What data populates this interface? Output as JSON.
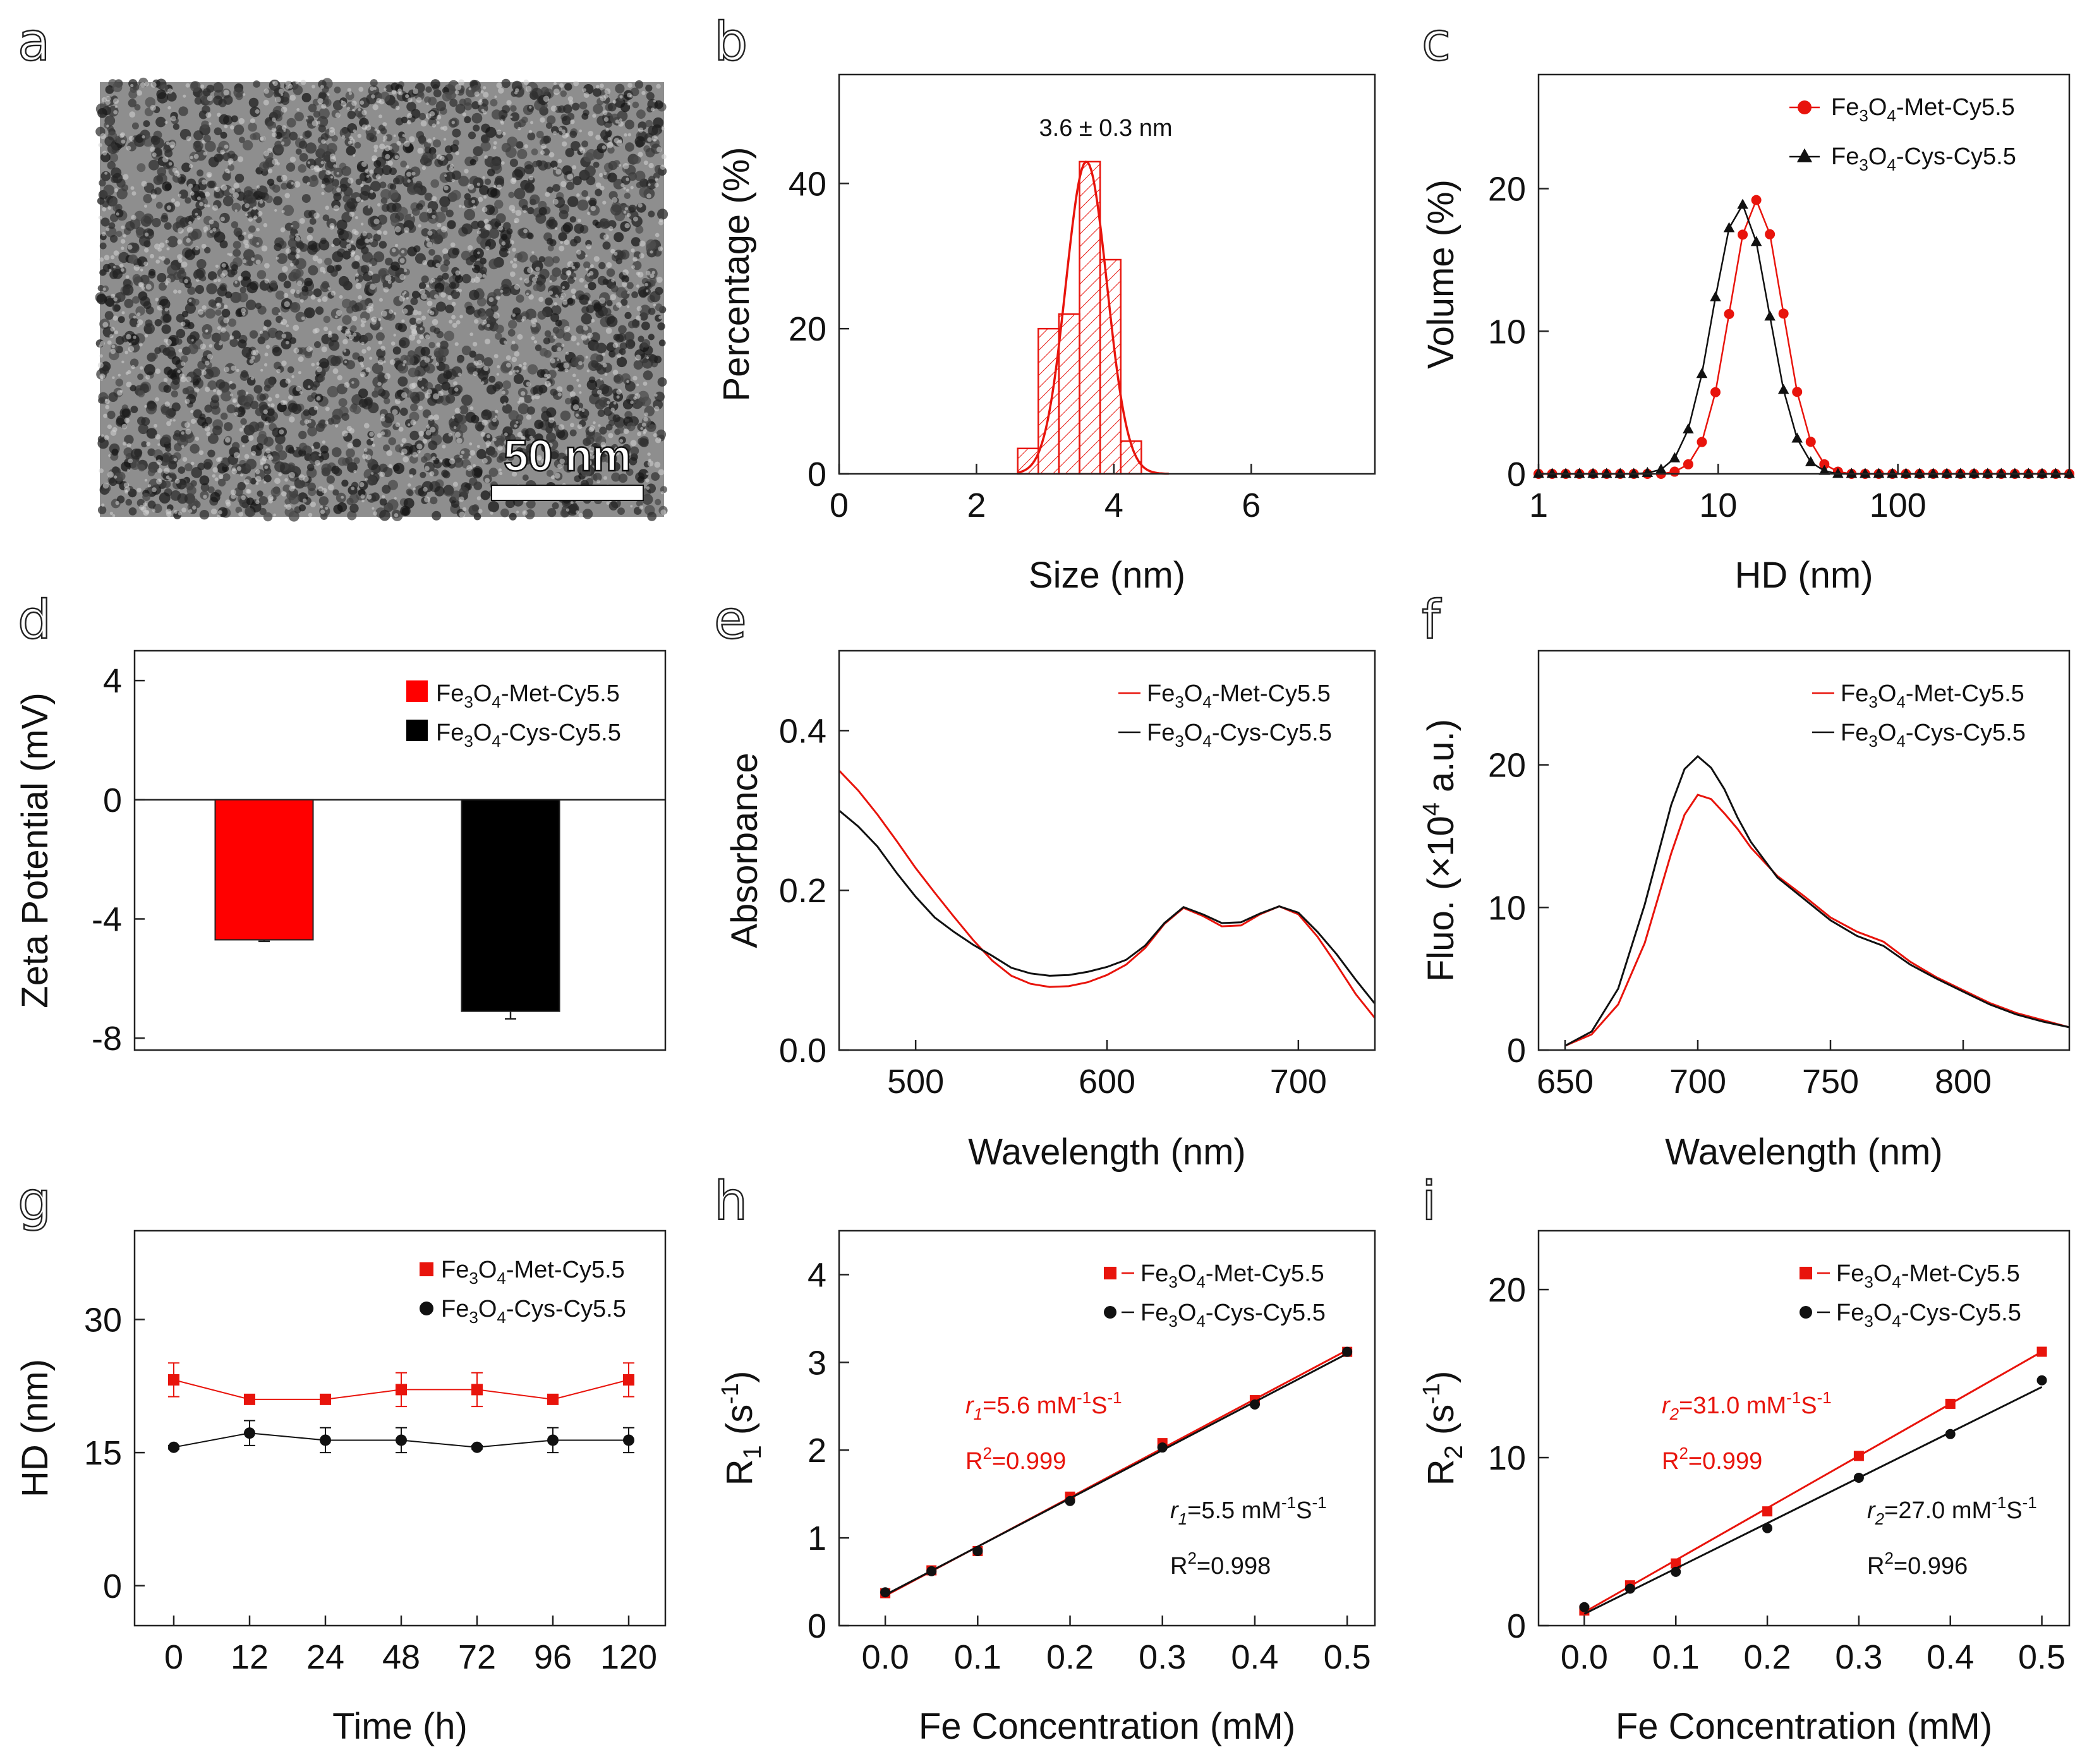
{
  "chart_data": [
    {
      "panel": "a",
      "type": "image",
      "description_label": "TEM micrograph",
      "scale_bar_label": "50 nm"
    },
    {
      "panel": "b",
      "type": "bar",
      "xlabel": "Size (nm)",
      "ylabel": "Percentage (%)",
      "xlim": [
        0,
        7.8
      ],
      "ylim": [
        0,
        55
      ],
      "xticks": [
        0,
        2,
        4,
        6
      ],
      "yticks": [
        0,
        20,
        40
      ],
      "bin_width": 0.3,
      "bins": [
        {
          "center": 2.75,
          "value": 3.5
        },
        {
          "center": 3.05,
          "value": 20
        },
        {
          "center": 3.35,
          "value": 22
        },
        {
          "center": 3.65,
          "value": 43
        },
        {
          "center": 3.95,
          "value": 29.5
        },
        {
          "center": 4.25,
          "value": 4.5
        }
      ],
      "fit": {
        "type": "gaussian",
        "mean": 3.6,
        "sigma": 0.3,
        "peak": 43,
        "from": 2.6,
        "to": 4.8
      },
      "annotation": "3.6 ± 0.3 nm",
      "color": "#e8140c"
    },
    {
      "panel": "c",
      "type": "line",
      "xscale": "log",
      "xlabel": "HD (nm)",
      "ylabel": "Volume (%)",
      "xlim": [
        1,
        900
      ],
      "ylim": [
        0,
        28
      ],
      "xticks": [
        1,
        10,
        100
      ],
      "xtick_labels": [
        "1",
        "10",
        "100"
      ],
      "yticks": [
        0,
        10,
        20
      ],
      "series": [
        {
          "name": "Fe3O4-Met-Cy5.5",
          "color": "#e8140c",
          "marker": "circle",
          "mean": 16.3,
          "log_sigma": 0.34,
          "peak": 19.2
        },
        {
          "name": "Fe3O4-Cys-Cy5.5",
          "color": "#111111",
          "marker": "triangle",
          "mean": 13.4,
          "log_sigma": 0.36,
          "peak": 18.9
        }
      ],
      "legend": [
        {
          "main": "Fe",
          "sub1": "3",
          "mid": "O",
          "sub2": "4",
          "tail": "-Met-Cy5.5"
        },
        {
          "main": "Fe",
          "sub1": "3",
          "mid": "O",
          "sub2": "4",
          "tail": "-Cys-Cy5.5"
        }
      ],
      "legend_position": "top-right"
    },
    {
      "panel": "d",
      "type": "bar",
      "ylabel": "Zeta Potential (mV)",
      "ylim": [
        -8.4,
        5
      ],
      "yticks": [
        4,
        0,
        -4,
        -8
      ],
      "ytick_labels": [
        "4",
        "0",
        "-4",
        "-8"
      ],
      "series": [
        {
          "name": "Fe3O4-Met-Cy5.5",
          "value": -4.7,
          "error": 0.05,
          "color": "#ff0000"
        },
        {
          "name": "Fe3O4-Cys-Cy5.5",
          "value": -7.1,
          "error": 0.25,
          "color": "#000000"
        }
      ],
      "legend": [
        {
          "main": "Fe",
          "sub1": "3",
          "mid": "O",
          "sub2": "4",
          "tail": "-Met-Cy5.5"
        },
        {
          "main": "Fe",
          "sub1": "3",
          "mid": "O",
          "sub2": "4",
          "tail": "-Cys-Cy5.5"
        }
      ],
      "legend_position": "top-right"
    },
    {
      "panel": "e",
      "type": "line",
      "xlabel": "Wavelength (nm)",
      "ylabel": "Absorbance",
      "xlim": [
        460,
        740
      ],
      "ylim": [
        0,
        0.5
      ],
      "xticks": [
        500,
        600,
        700
      ],
      "yticks": [
        0,
        0.2,
        0.4
      ],
      "ytick_labels": [
        "0.0",
        "0.2",
        "0.4"
      ],
      "series": [
        {
          "name": "Fe3O4-Met-Cy5.5",
          "color": "#e8140c",
          "x": [
            460,
            470,
            480,
            490,
            500,
            510,
            520,
            530,
            540,
            550,
            560,
            570,
            580,
            590,
            600,
            610,
            620,
            630,
            640,
            650,
            660,
            670,
            680,
            690,
            700,
            710,
            720,
            730,
            740
          ],
          "y": [
            0.35,
            0.325,
            0.295,
            0.262,
            0.228,
            0.197,
            0.167,
            0.138,
            0.112,
            0.093,
            0.083,
            0.079,
            0.08,
            0.085,
            0.094,
            0.107,
            0.128,
            0.158,
            0.178,
            0.168,
            0.155,
            0.156,
            0.17,
            0.18,
            0.17,
            0.142,
            0.107,
            0.07,
            0.04
          ]
        },
        {
          "name": "Fe3O4-Cys-Cy5.5",
          "color": "#111111",
          "x": [
            460,
            470,
            480,
            490,
            500,
            510,
            520,
            530,
            540,
            550,
            560,
            570,
            580,
            590,
            600,
            610,
            620,
            630,
            640,
            650,
            660,
            670,
            680,
            690,
            700,
            710,
            720,
            730,
            740
          ],
          "y": [
            0.3,
            0.28,
            0.255,
            0.222,
            0.192,
            0.166,
            0.148,
            0.132,
            0.118,
            0.103,
            0.096,
            0.093,
            0.094,
            0.098,
            0.104,
            0.113,
            0.131,
            0.159,
            0.179,
            0.17,
            0.159,
            0.16,
            0.171,
            0.18,
            0.172,
            0.148,
            0.12,
            0.088,
            0.058
          ]
        }
      ],
      "legend": [
        {
          "main": "Fe",
          "sub1": "3",
          "mid": "O",
          "sub2": "4",
          "tail": "-Met-Cy5.5"
        },
        {
          "main": "Fe",
          "sub1": "3",
          "mid": "O",
          "sub2": "4",
          "tail": "-Cys-Cy5.5"
        }
      ],
      "legend_position": "top-right"
    },
    {
      "panel": "f",
      "type": "line",
      "xlabel": "Wavelength (nm)",
      "ylabel_main": "Fluo. (×10",
      "ylabel_sup": "4",
      "ylabel_tail": " a.u.)",
      "xlim": [
        640,
        840
      ],
      "ylim": [
        0,
        28
      ],
      "xticks": [
        650,
        700,
        750,
        800
      ],
      "yticks": [
        0,
        10,
        20
      ],
      "series": [
        {
          "name": "Fe3O4-Met-Cy5.5",
          "color": "#e8140c",
          "x": [
            650,
            660,
            670,
            680,
            690,
            695,
            700,
            705,
            710,
            715,
            720,
            730,
            740,
            750,
            760,
            770,
            780,
            790,
            800,
            810,
            820,
            830,
            840
          ],
          "y": [
            0.3,
            1.1,
            3.2,
            7.5,
            13.8,
            16.5,
            17.9,
            17.6,
            16.6,
            15.5,
            14.2,
            12.2,
            10.8,
            9.3,
            8.3,
            7.6,
            6.2,
            5.1,
            4.2,
            3.3,
            2.6,
            2.1,
            1.6
          ]
        },
        {
          "name": "Fe3O4-Cys-Cy5.5",
          "color": "#111111",
          "x": [
            650,
            660,
            670,
            680,
            690,
            695,
            700,
            705,
            710,
            715,
            720,
            730,
            740,
            750,
            760,
            770,
            780,
            790,
            800,
            810,
            820,
            830,
            840
          ],
          "y": [
            0.3,
            1.3,
            4.3,
            10.2,
            17.2,
            19.7,
            20.6,
            19.8,
            18.3,
            16.3,
            14.6,
            12.1,
            10.6,
            9.1,
            8.0,
            7.3,
            6.0,
            5.0,
            4.1,
            3.2,
            2.5,
            2.0,
            1.6
          ]
        }
      ],
      "legend": [
        {
          "main": "Fe",
          "sub1": "3",
          "mid": "O",
          "sub2": "4",
          "tail": "-Met-Cy5.5"
        },
        {
          "main": "Fe",
          "sub1": "3",
          "mid": "O",
          "sub2": "4",
          "tail": "-Cys-Cy5.5"
        }
      ],
      "legend_position": "top-right"
    },
    {
      "panel": "g",
      "type": "line",
      "xlabel": "Time (h)",
      "ylabel": "HD (nm)",
      "categories": [
        "0",
        "12",
        "24",
        "48",
        "72",
        "96",
        "120"
      ],
      "ylim": [
        -4.5,
        40
      ],
      "yticks": [
        0,
        15,
        30
      ],
      "series": [
        {
          "name": "Fe3O4-Met-Cy5.5",
          "color": "#e8140c",
          "marker": "square",
          "values": [
            23.2,
            21.0,
            21.0,
            22.1,
            22.1,
            21.0,
            23.2
          ],
          "errors": [
            1.9,
            0.2,
            0.2,
            1.9,
            1.9,
            0.2,
            1.9
          ]
        },
        {
          "name": "Fe3O4-Cys-Cy5.5",
          "color": "#111111",
          "marker": "circle",
          "values": [
            15.6,
            17.2,
            16.4,
            16.4,
            15.6,
            16.4,
            16.4
          ],
          "errors": [
            0.2,
            1.4,
            1.4,
            1.4,
            0.2,
            1.4,
            1.4
          ]
        }
      ],
      "legend": [
        {
          "main": "Fe",
          "sub1": "3",
          "mid": "O",
          "sub2": "4",
          "tail": "-Met-Cy5.5"
        },
        {
          "main": "Fe",
          "sub1": "3",
          "mid": "O",
          "sub2": "4",
          "tail": "-Cys-Cy5.5"
        }
      ],
      "legend_position": "top-right"
    },
    {
      "panel": "h",
      "type": "scatter",
      "xlabel": "Fe Concentration (mM)",
      "ylabel_main": "R",
      "ylabel_sub": "1",
      "ylabel_tail": " (s",
      "ylabel_sup": "-1",
      "ylabel_close": ")",
      "xlim": [
        -0.05,
        0.53
      ],
      "ylim": [
        0,
        4.5
      ],
      "xticks": [
        0,
        0.1,
        0.2,
        0.3,
        0.4,
        0.5
      ],
      "xtick_labels": [
        "0.0",
        "0.1",
        "0.2",
        "0.3",
        "0.4",
        "0.5"
      ],
      "yticks": [
        0,
        1,
        2,
        3,
        4
      ],
      "series": [
        {
          "name": "Fe3O4-Met-Cy5.5",
          "color": "#e8140c",
          "marker": "square",
          "x": [
            0,
            0.05,
            0.1,
            0.2,
            0.3,
            0.4,
            0.5
          ],
          "y": [
            0.37,
            0.63,
            0.85,
            1.47,
            2.08,
            2.57,
            3.12
          ],
          "fit": {
            "slope": 5.6,
            "intercept": 0.34
          }
        },
        {
          "name": "Fe3O4-Cys-Cy5.5",
          "color": "#111111",
          "marker": "circle",
          "x": [
            0,
            0.05,
            0.1,
            0.2,
            0.3,
            0.4,
            0.5
          ],
          "y": [
            0.38,
            0.62,
            0.85,
            1.42,
            2.03,
            2.52,
            3.12
          ],
          "fit": {
            "slope": 5.5,
            "intercept": 0.35
          }
        }
      ],
      "legend": [
        {
          "main": "Fe",
          "sub1": "3",
          "mid": "O",
          "sub2": "4",
          "tail": "-Met-Cy5.5"
        },
        {
          "main": "Fe",
          "sub1": "3",
          "mid": "O",
          "sub2": "4",
          "tail": "-Cys-Cy5.5"
        }
      ],
      "legend_position": "top-right",
      "annotations": [
        {
          "sym": "r",
          "sub": "1",
          "value": "=5.6 mM",
          "sup": "-1",
          "unit": "S",
          "sup2": "-1",
          "r2": "R",
          "r2sup": "2",
          "r2value": "=0.999",
          "color": "#e8140c",
          "placement": "upper-left"
        },
        {
          "sym": "r",
          "sub": "1",
          "value": "=5.5 mM",
          "sup": "-1",
          "unit": "S",
          "sup2": "-1",
          "r2": "R",
          "r2sup": "2",
          "r2value": "=0.998",
          "color": "#111111",
          "placement": "lower-right"
        }
      ]
    },
    {
      "panel": "i",
      "type": "scatter",
      "xlabel": "Fe Concentration (mM)",
      "ylabel_main": "R",
      "ylabel_sub": "2",
      "ylabel_tail": " (s",
      "ylabel_sup": "-1",
      "ylabel_close": ")",
      "xlim": [
        -0.05,
        0.53
      ],
      "ylim": [
        0,
        23.5
      ],
      "xticks": [
        0,
        0.1,
        0.2,
        0.3,
        0.4,
        0.5
      ],
      "xtick_labels": [
        "0.0",
        "0.1",
        "0.2",
        "0.3",
        "0.4",
        "0.5"
      ],
      "yticks": [
        0,
        10,
        20
      ],
      "series": [
        {
          "name": "Fe3O4-Met-Cy5.5",
          "color": "#e8140c",
          "marker": "square",
          "x": [
            0,
            0.05,
            0.1,
            0.2,
            0.3,
            0.4,
            0.5
          ],
          "y": [
            0.9,
            2.4,
            3.7,
            6.8,
            10.1,
            13.2,
            16.3
          ],
          "fit": {
            "slope": 31.0,
            "intercept": 0.8
          }
        },
        {
          "name": "Fe3O4-Cys-Cy5.5",
          "color": "#111111",
          "marker": "circle",
          "x": [
            0,
            0.05,
            0.1,
            0.2,
            0.3,
            0.4,
            0.5
          ],
          "y": [
            1.1,
            2.2,
            3.2,
            5.8,
            8.8,
            11.4,
            14.6
          ],
          "fit": {
            "slope": 27.0,
            "intercept": 0.7
          }
        }
      ],
      "legend": [
        {
          "main": "Fe",
          "sub1": "3",
          "mid": "O",
          "sub2": "4",
          "tail": "-Met-Cy5.5"
        },
        {
          "main": "Fe",
          "sub1": "3",
          "mid": "O",
          "sub2": "4",
          "tail": "-Cys-Cy5.5"
        }
      ],
      "legend_position": "top-right",
      "annotations": [
        {
          "sym": "r",
          "sub": "2",
          "value": "=31.0 mM",
          "sup": "-1",
          "unit": "S",
          "sup2": "-1",
          "r2": "R",
          "r2sup": "2",
          "r2value": "=0.999",
          "color": "#e8140c",
          "placement": "upper-left"
        },
        {
          "sym": "r",
          "sub": "2",
          "value": "=27.0 mM",
          "sup": "-1",
          "unit": "S",
          "sup2": "-1",
          "r2": "R",
          "r2sup": "2",
          "r2value": "=0.996",
          "color": "#111111",
          "placement": "lower-right"
        }
      ]
    }
  ]
}
